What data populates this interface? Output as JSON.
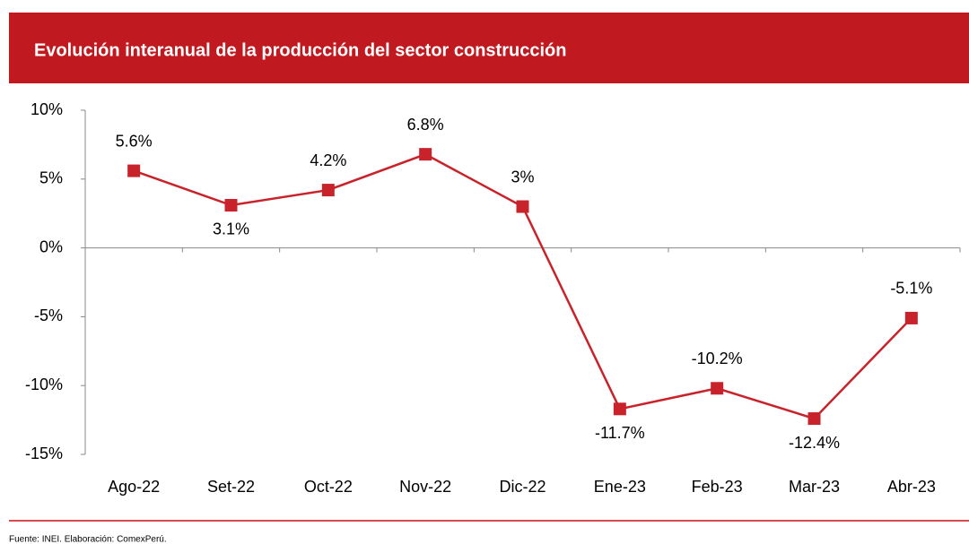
{
  "chart_data": {
    "type": "line",
    "title": "Evolución interanual de la producción del sector construcción",
    "categories": [
      "Ago-22",
      "Set-22",
      "Oct-22",
      "Nov-22",
      "Dic-22",
      "Ene-23",
      "Feb-23",
      "Mar-23",
      "Abr-23"
    ],
    "series": [
      {
        "name": "Producción sector construcción",
        "color": "#c8222a",
        "values": [
          5.6,
          3.1,
          4.2,
          6.8,
          3,
          -11.7,
          -10.2,
          -12.4,
          -5.1
        ],
        "value_labels": [
          "5.6%",
          "3.1%",
          "4.2%",
          "6.8%",
          "3%",
          "-11.7%",
          "-10.2%",
          "-12.4%",
          "-5.1%"
        ]
      }
    ],
    "ylim": [
      -15,
      10
    ],
    "yticks": [
      {
        "value": -15,
        "label": "-15%"
      },
      {
        "value": -10,
        "label": "-10%"
      },
      {
        "value": -5,
        "label": "-5%"
      },
      {
        "value": 0,
        "label": "0%"
      },
      {
        "value": 5,
        "label": "5%"
      },
      {
        "value": 10,
        "label": "10%"
      }
    ],
    "grid": false,
    "source": "Fuente: INEI. Elaboración: ComexPerú."
  }
}
